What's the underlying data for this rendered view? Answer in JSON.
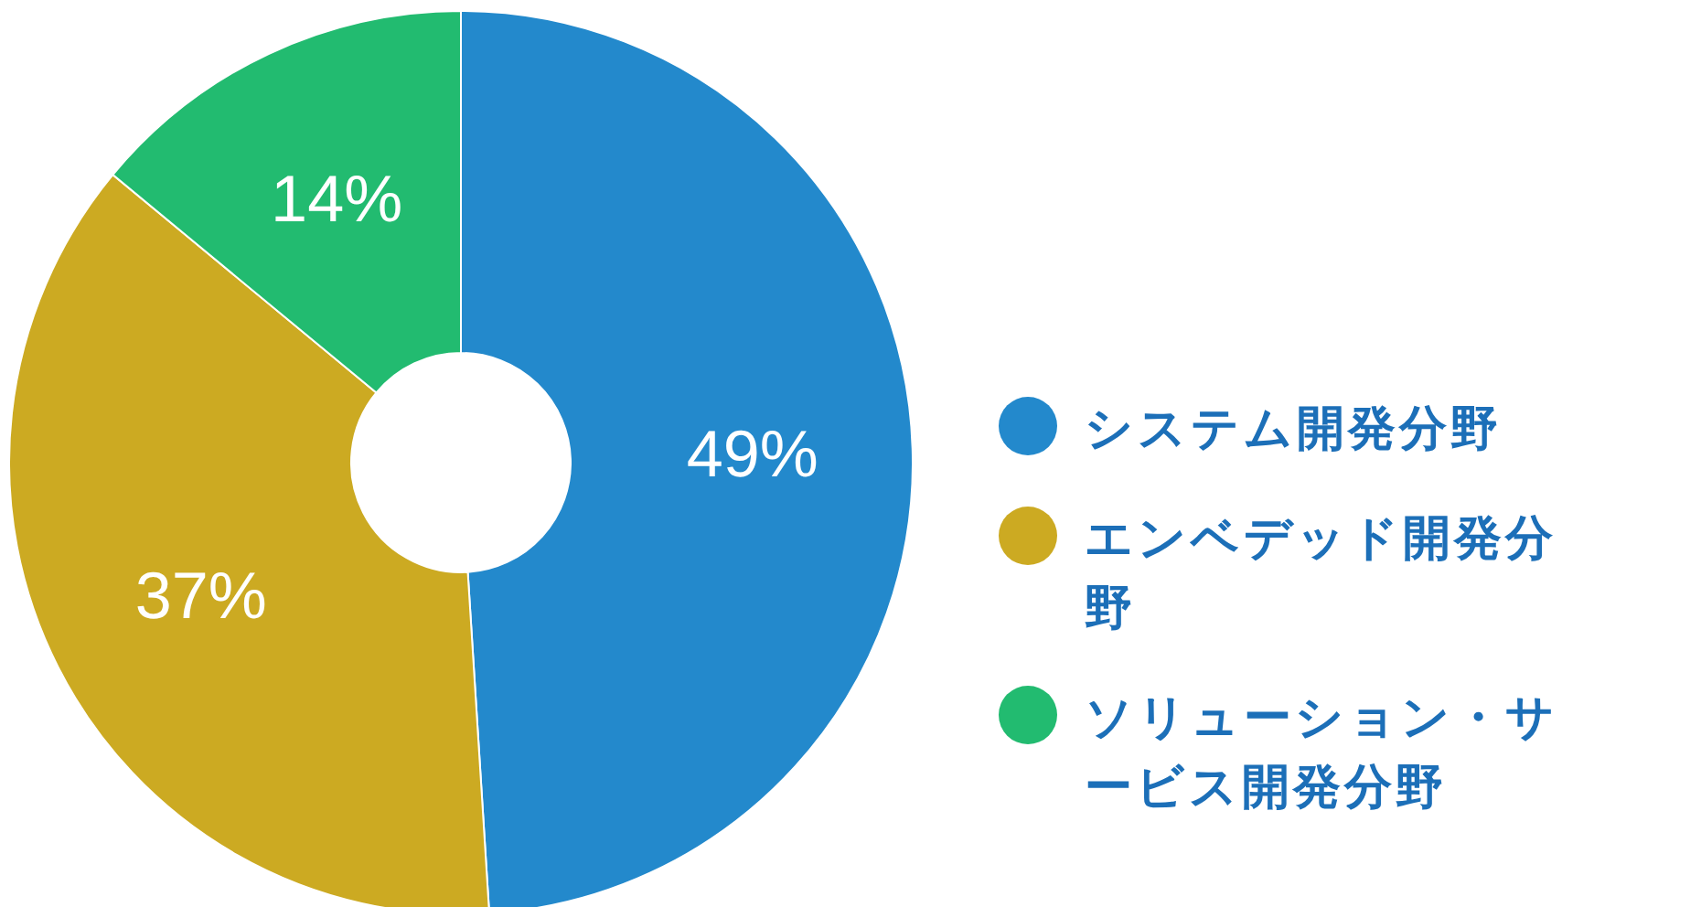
{
  "chart_data": {
    "type": "donut",
    "categories": [
      "システム開発分野",
      "エンベデッド開発分野",
      "ソリューション・サービス開発分野"
    ],
    "values": [
      49,
      37,
      14
    ],
    "colors": [
      "#2389cc",
      "#ccaa22",
      "#22bb70"
    ],
    "value_labels": [
      "49%",
      "37%",
      "14%"
    ],
    "legend": "right"
  }
}
